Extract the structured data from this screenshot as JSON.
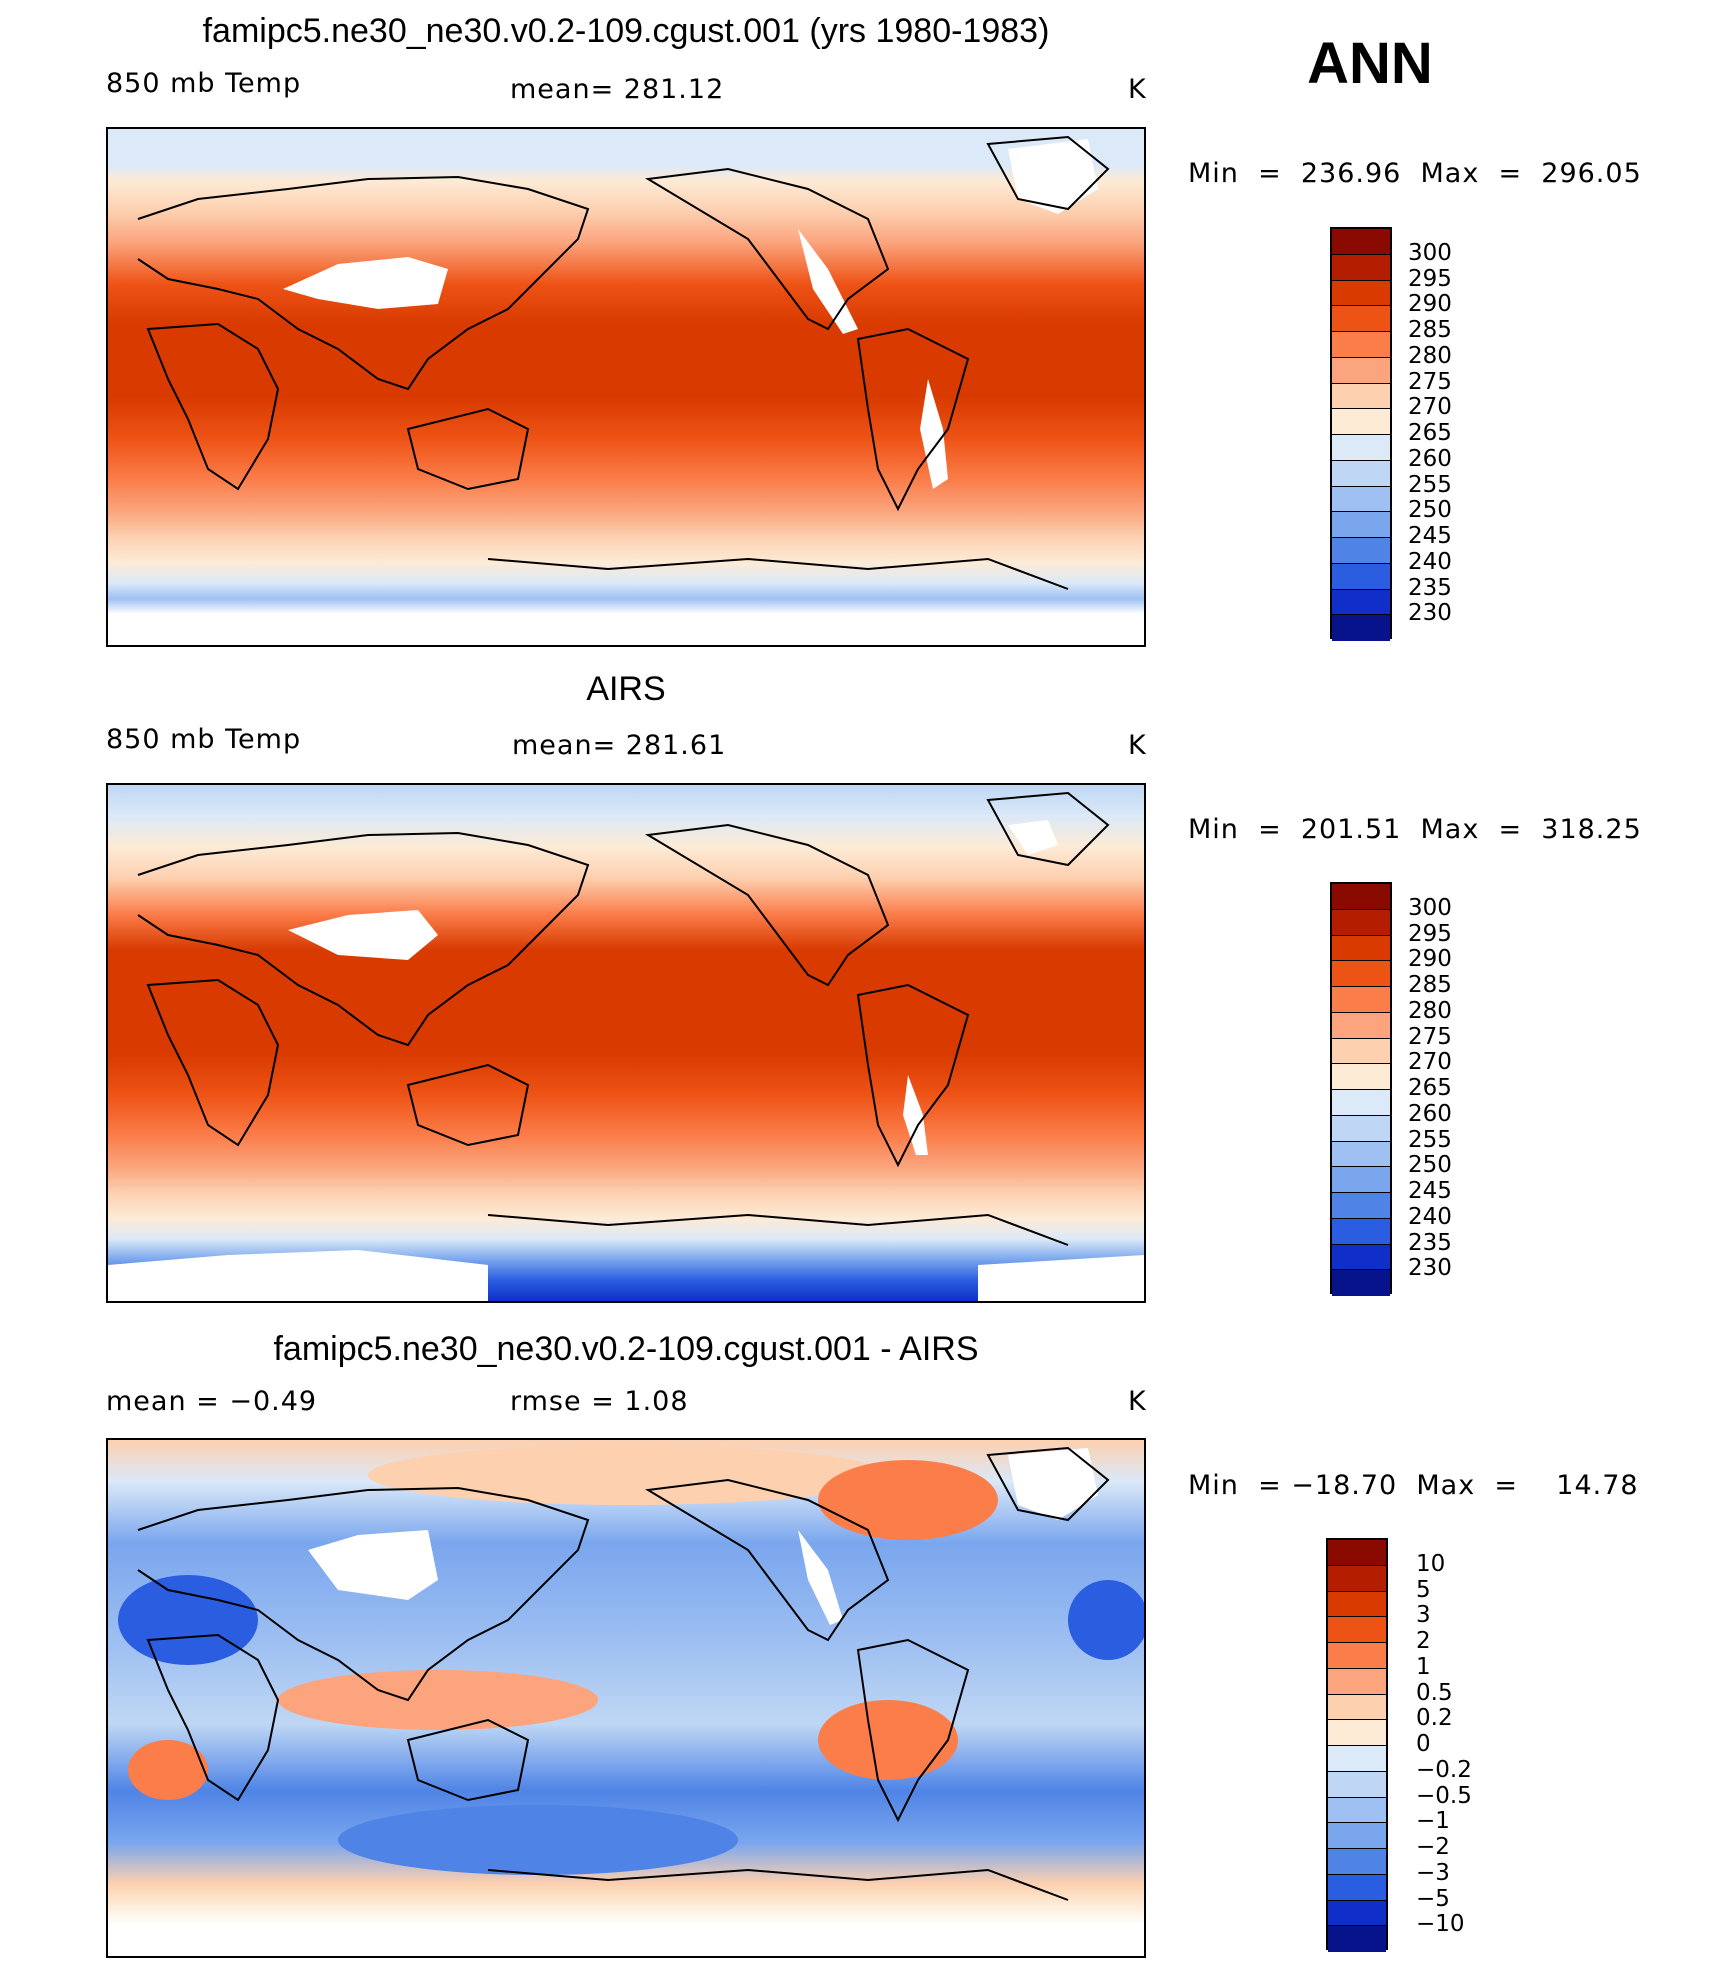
{
  "season": "ANN",
  "panels": [
    {
      "title": "famipc5.ne30_ne30.v0.2-109.cgust.001 (yrs 1980-1983)",
      "left_label": "850 mb Temp",
      "center_label": "mean=  281.12",
      "right_label": "K",
      "minmax": "Min  =  236.96  Max  =  296.05",
      "kind": "abs"
    },
    {
      "title": "AIRS",
      "left_label": "850 mb Temp",
      "center_label": "mean=  281.61",
      "right_label": "K",
      "minmax": "Min  =  201.51  Max  =  318.25",
      "kind": "abs"
    },
    {
      "title": "famipc5.ne30_ne30.v0.2-109.cgust.001 - AIRS",
      "left_label": "mean  =    −0.49",
      "center_label": "rmse  =     1.08",
      "right_label": "K",
      "minmax": "Min  = −18.70  Max  =    14.78",
      "kind": "diff"
    }
  ],
  "colorbars": {
    "abs": {
      "labels": [
        "300",
        "295",
        "290",
        "285",
        "280",
        "275",
        "270",
        "265",
        "260",
        "255",
        "250",
        "245",
        "240",
        "235",
        "230"
      ],
      "colors": [
        "#8b0a00",
        "#b51d00",
        "#d83a00",
        "#ee5316",
        "#fb7d4a",
        "#fba47d",
        "#fdd0b0",
        "#fdebd6",
        "#dbe9f8",
        "#bfd7f4",
        "#9fc0f2",
        "#7aa6ee",
        "#4f84e6",
        "#2a5de0",
        "#0f2fc8",
        "#06138a"
      ]
    },
    "diff": {
      "labels": [
        "10",
        "5",
        "3",
        "2",
        "1",
        "0.5",
        "0.2",
        "0",
        "−0.2",
        "−0.5",
        "−1",
        "−2",
        "−3",
        "−5",
        "−10"
      ],
      "colors": [
        "#8b0a00",
        "#b51d00",
        "#d83a00",
        "#ee5316",
        "#fb7d4a",
        "#fba47d",
        "#fdd0b0",
        "#fdebd6",
        "#dbe9f8",
        "#bfd7f4",
        "#9fc0f2",
        "#7aa6ee",
        "#4f84e6",
        "#2a5de0",
        "#0f2fc8",
        "#06138a"
      ]
    }
  }
}
